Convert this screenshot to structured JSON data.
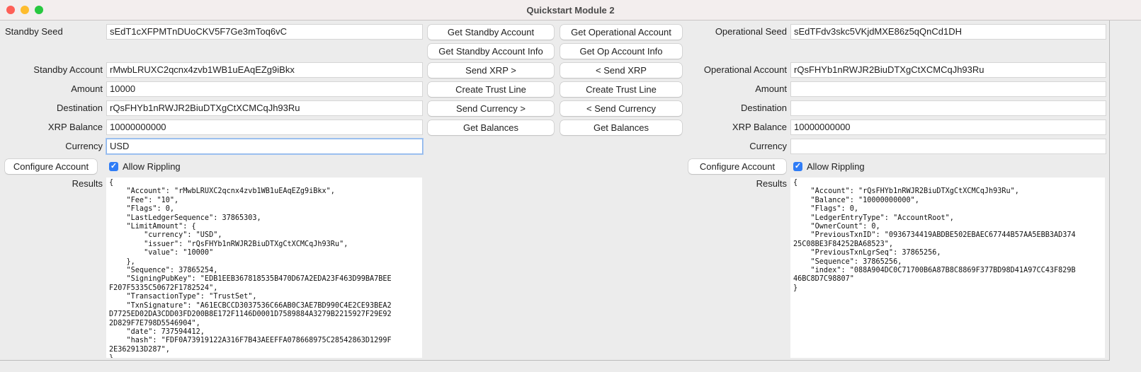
{
  "window": {
    "title": "Quickstart Module 2"
  },
  "standby": {
    "seed_label": "Standby Seed",
    "seed": "sEdT1cXFPMTnDUoCKV5F7Ge3mToq6vC",
    "account_label": "Standby Account",
    "account": "rMwbLRUXC2qcnx4zvb1WB1uEAqEZg9iBkx",
    "amount_label": "Amount",
    "amount": "10000",
    "destination_label": "Destination",
    "destination": "rQsFHYb1nRWJR2BiuDTXgCtXCMCqJh93Ru",
    "xrp_balance_label": "XRP Balance",
    "xrp_balance": "10000000000",
    "currency_label": "Currency",
    "currency": "USD",
    "configure_label": "Configure Account",
    "allow_rippling_label": "Allow Rippling",
    "allow_rippling": true,
    "results_label": "Results",
    "results": "{\n    \"Account\": \"rMwbLRUXC2qcnx4zvb1WB1uEAqEZg9iBkx\",\n    \"Fee\": \"10\",\n    \"Flags\": 0,\n    \"LastLedgerSequence\": 37865303,\n    \"LimitAmount\": {\n        \"currency\": \"USD\",\n        \"issuer\": \"rQsFHYb1nRWJR2BiuDTXgCtXCMCqJh93Ru\",\n        \"value\": \"10000\"\n    },\n    \"Sequence\": 37865254,\n    \"SigningPubKey\": \"EDB1EEB367818535B470D67A2EDA23F463D99BA7BEE\nF207F5335C50672F1782524\",\n    \"TransactionType\": \"TrustSet\",\n    \"TxnSignature\": \"A61ECBCCD3037536C66AB0C3AE7BD990C4E2CE93BEA2\nD7725ED02DA3CDD03FD200B8E172F1146D0001D7589884A3279B2215927F29E92\n2D829F7E798D5546904\",\n    \"date\": 737594412,\n    \"hash\": \"FDF0A73919122A316F7B43AEEFFA078668975C28542863D1299F\n2E362913D287\",\n}"
  },
  "buttons": {
    "get_standby_account": "Get Standby Account",
    "get_operational_account": "Get Operational Account",
    "get_standby_account_info": "Get Standby Account Info",
    "get_op_account_info": "Get Op Account Info",
    "send_xrp_right": "Send XRP >",
    "send_xrp_left": "< Send XRP",
    "create_trust_line_standby": "Create Trust Line",
    "create_trust_line_op": "Create Trust Line",
    "send_currency_right": "Send Currency >",
    "send_currency_left": "< Send Currency",
    "get_balances_standby": "Get Balances",
    "get_balances_op": "Get Balances"
  },
  "operational": {
    "seed_label": "Operational Seed",
    "seed": "sEdTFdv3skc5VKjdMXE86z5qQnCd1DH",
    "account_label": "Operational Account",
    "account": "rQsFHYb1nRWJR2BiuDTXgCtXCMCqJh93Ru",
    "amount_label": "Amount",
    "amount": "",
    "destination_label": "Destination",
    "destination": "",
    "xrp_balance_label": "XRP Balance",
    "xrp_balance": "10000000000",
    "currency_label": "Currency",
    "currency": "",
    "configure_label": "Configure Account",
    "allow_rippling_label": "Allow Rippling",
    "allow_rippling": true,
    "results_label": "Results",
    "results": "{\n    \"Account\": \"rQsFHYb1nRWJR2BiuDTXgCtXCMCqJh93Ru\",\n    \"Balance\": \"10000000000\",\n    \"Flags\": 0,\n    \"LedgerEntryType\": \"AccountRoot\",\n    \"OwnerCount\": 0,\n    \"PreviousTxnID\": \"0936734419ABDBE502EBAEC67744B57AA5EBB3AD374\n25C08BE3F84252BA68523\",\n    \"PreviousTxnLgrSeq\": 37865256,\n    \"Sequence\": 37865256,\n    \"index\": \"088A904DC0C71700B6A87B8C8869F377BD98D41A97CC43F829B\n46BC8D7C98807\"\n}"
  },
  "colors": {
    "accent": "#2f7cf6",
    "close": "#fe5f57",
    "minimize": "#febc2e",
    "zoom": "#28c840"
  }
}
